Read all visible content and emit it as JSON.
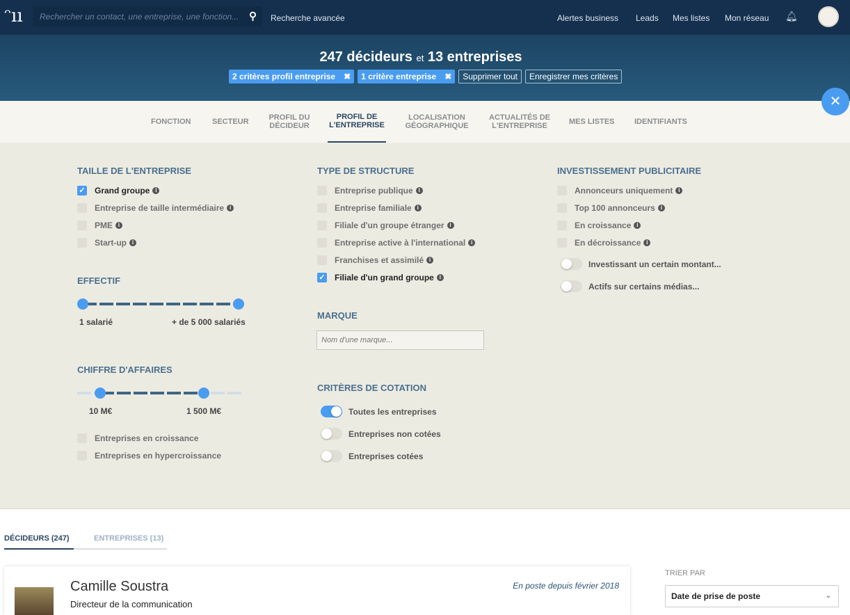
{
  "header": {
    "search_placeholder": "Rechercher un contact, une entreprise, une fonction...",
    "advanced": "Recherche avancée",
    "nav": [
      "Alertes business",
      "Leads",
      "Mes listes",
      "Mon réseau"
    ]
  },
  "banner": {
    "decideurs": "247 décideurs",
    "et": "et",
    "entreprises": "13 entreprises",
    "chips": [
      "2 critères profil entreprise",
      "1 critère entreprise"
    ],
    "remove_all": "Supprimer tout",
    "save": "Enregistrer mes critères"
  },
  "tabs": [
    "FONCTION",
    "SECTEUR",
    "PROFIL DU DÉCIDEUR",
    "PROFIL DE L'ENTREPRISE",
    "LOCALISATION GÉOGRAPHIQUE",
    "ACTUALITÉS DE L'ENTREPRISE",
    "MES LISTES",
    "IDENTIFIANTS"
  ],
  "active_tab": "PROFIL DE L'ENTREPRISE",
  "taille": {
    "title": "TAILLE DE L'ENTREPRISE",
    "items": [
      {
        "label": "Grand groupe",
        "checked": true
      },
      {
        "label": "Entreprise de taille intermédiaire",
        "checked": false
      },
      {
        "label": "PME",
        "checked": false
      },
      {
        "label": "Start-up",
        "checked": false
      }
    ]
  },
  "effectif": {
    "title": "EFFECTIF",
    "min": "1 salarié",
    "max": "+ de 5 000 salariés"
  },
  "ca": {
    "title": "CHIFFRE D'AFFAIRES",
    "min": "10 M€",
    "max": "1 500 M€",
    "items": [
      "Entreprises en croissance",
      "Entreprises en hypercroissance"
    ]
  },
  "structure": {
    "title": "TYPE DE STRUCTURE",
    "items": [
      {
        "label": "Entreprise publique",
        "checked": false
      },
      {
        "label": "Entreprise familiale",
        "checked": false
      },
      {
        "label": "Filiale d'un groupe étranger",
        "checked": false
      },
      {
        "label": "Entreprise active à l'international",
        "checked": false
      },
      {
        "label": "Franchises et assimilé",
        "checked": false
      },
      {
        "label": "Filiale d'un grand groupe",
        "checked": true
      }
    ]
  },
  "marque": {
    "title": "MARQUE",
    "placeholder": "Nom d'une marque..."
  },
  "cotation": {
    "title": "CRITÈRES DE COTATION",
    "items": [
      {
        "label": "Toutes les entreprises",
        "on": true
      },
      {
        "label": "Entreprises non cotées",
        "on": false
      },
      {
        "label": "Entreprises cotées",
        "on": false
      }
    ]
  },
  "pub": {
    "title": "INVESTISSEMENT PUBLICITAIRE",
    "items": [
      "Annonceurs uniquement",
      "Top 100 annonceurs",
      "En croissance",
      "En décroissance"
    ],
    "toggles": [
      "Investissant un certain montant...",
      "Actifs sur certains médias..."
    ]
  },
  "results": {
    "tabs": [
      "DÉCIDEURS (247)",
      "ENTREPRISES (13)"
    ],
    "card": {
      "name": "Camille Soustra",
      "role": "Directeur de la communication",
      "since": "En poste depuis février 2018"
    },
    "sort_label": "TRIER PAR",
    "sort_value": "Date de prise de poste"
  }
}
